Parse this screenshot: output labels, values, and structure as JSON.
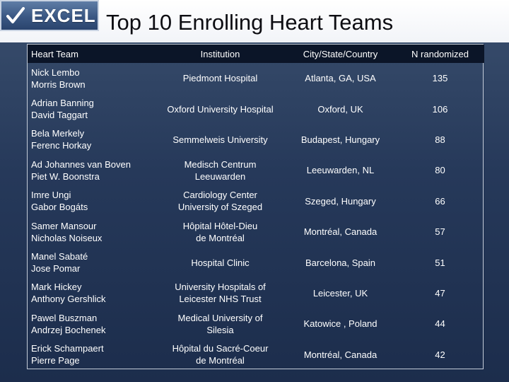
{
  "header": {
    "logo_text": "EXCEL",
    "title": "Top 10 Enrolling Heart Teams"
  },
  "table": {
    "columns": [
      "Heart Team",
      "Institution",
      "City/State/Country",
      "N randomized"
    ],
    "rows": [
      {
        "team": [
          "Nick Lembo",
          "Morris Brown"
        ],
        "institution": [
          "Piedmont Hospital"
        ],
        "location": "Atlanta, GA, USA",
        "n": "135"
      },
      {
        "team": [
          "Adrian Banning",
          "David Taggart"
        ],
        "institution": [
          "Oxford University Hospital"
        ],
        "location": "Oxford, UK",
        "n": "106"
      },
      {
        "team": [
          "Bela Merkely",
          "Ferenc Horkay"
        ],
        "institution": [
          "Semmelweis University"
        ],
        "location": "Budapest, Hungary",
        "n": "88"
      },
      {
        "team": [
          "Ad Johannes van Boven",
          "Piet W. Boonstra"
        ],
        "institution": [
          "Medisch Centrum",
          "Leeuwarden"
        ],
        "location": "Leeuwarden, NL",
        "n": "80"
      },
      {
        "team": [
          "Imre Ungi",
          "Gabor Bogáts"
        ],
        "institution": [
          "Cardiology Center",
          "University of Szeged"
        ],
        "location": "Szeged, Hungary",
        "n": "66"
      },
      {
        "team": [
          "Samer Mansour",
          "Nicholas Noiseux"
        ],
        "institution": [
          "Hôpital Hôtel-Dieu",
          "de Montréal"
        ],
        "location": "Montréal, Canada",
        "n": "57"
      },
      {
        "team": [
          "Manel Sabaté",
          "Jose Pomar"
        ],
        "institution": [
          "Hospital Clinic"
        ],
        "location": "Barcelona, Spain",
        "n": "51"
      },
      {
        "team": [
          "Mark Hickey",
          "Anthony Gershlick"
        ],
        "institution": [
          "University Hospitals of",
          "Leicester NHS Trust"
        ],
        "location": "Leicester, UK",
        "n": "47"
      },
      {
        "team": [
          "Pawel Buszman",
          "Andrzej Bochenek"
        ],
        "institution": [
          "Medical University of",
          "Silesia"
        ],
        "location": "Katowice , Poland",
        "n": "44"
      },
      {
        "team": [
          "Erick Schampaert",
          "Pierre Page"
        ],
        "institution": [
          "Hôpital du Sacré-Coeur",
          "de Montréal"
        ],
        "location": "Montréal, Canada",
        "n": "42"
      }
    ]
  }
}
